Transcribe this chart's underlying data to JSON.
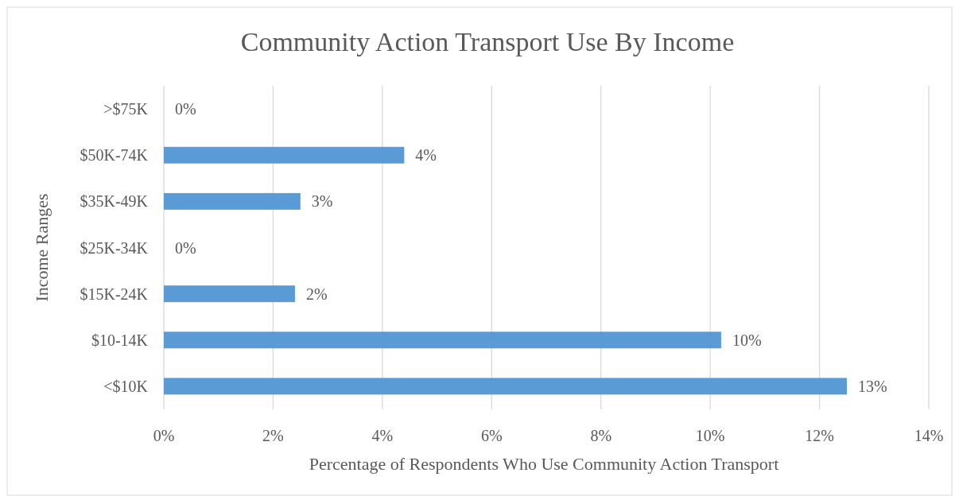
{
  "chart_data": {
    "type": "bar",
    "orientation": "horizontal",
    "title": "Community Action Transport Use By Income",
    "xlabel": "Percentage of Respondents Who Use Community Action Transport",
    "ylabel": "Income Ranges",
    "categories": [
      ">$75K",
      "$50K-74K",
      "$35K-49K",
      "$25K-34K",
      "$15K-24K",
      "$10-14K",
      "<$10K"
    ],
    "values": [
      0,
      4.4,
      2.5,
      0,
      2.4,
      10.2,
      12.5
    ],
    "value_labels": [
      "0%",
      "4%",
      "3%",
      "0%",
      "2%",
      "10%",
      "13%"
    ],
    "color": "#5b9bd5",
    "xlim": [
      0,
      14
    ],
    "xticks": [
      {
        "value": 0,
        "label": "0%"
      },
      {
        "value": 2,
        "label": "2%"
      },
      {
        "value": 4,
        "label": "4%"
      },
      {
        "value": 6,
        "label": "6%"
      },
      {
        "value": 8,
        "label": "8%"
      },
      {
        "value": 10,
        "label": "10%"
      },
      {
        "value": 12,
        "label": "12%"
      },
      {
        "value": 14,
        "label": "14%"
      }
    ],
    "grid": "x"
  }
}
